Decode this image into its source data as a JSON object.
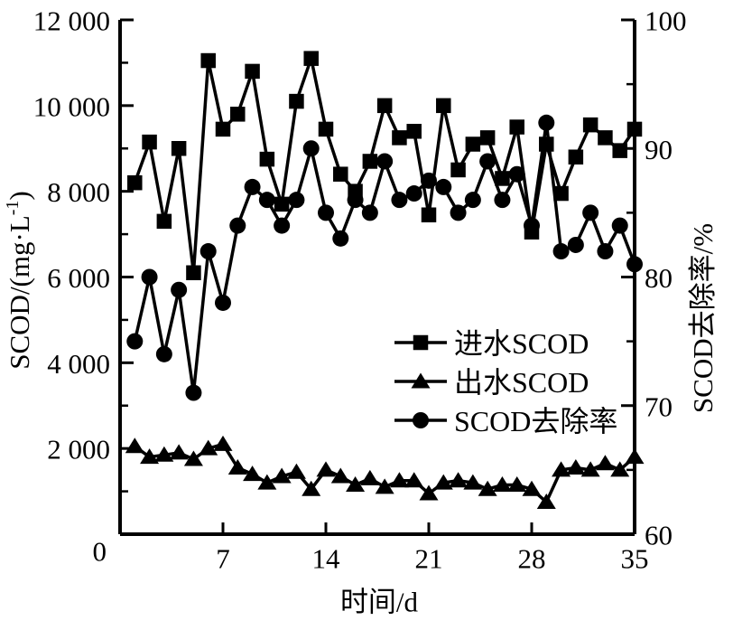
{
  "chart_data": {
    "type": "line",
    "title": "",
    "xlabel": "时间/d",
    "x": [
      1,
      2,
      3,
      4,
      5,
      6,
      7,
      8,
      9,
      10,
      11,
      12,
      13,
      14,
      15,
      16,
      17,
      18,
      19,
      20,
      21,
      22,
      23,
      24,
      25,
      26,
      27,
      28,
      29,
      30,
      31,
      32,
      33,
      34,
      35
    ],
    "xlim": [
      0,
      35
    ],
    "x_major_ticks": [
      7,
      14,
      21,
      28,
      35
    ],
    "x_major_tick_labels": [
      "7",
      "14",
      "21",
      "28",
      "35"
    ],
    "grid": false,
    "legend_position": "inside-center-right",
    "line_color": "#000000",
    "y_left": {
      "label_prefix": "SCOD/(mg·L",
      "label_sup": "-1",
      "label_suffix": ")",
      "label_full": "SCOD/(mg·L⁻¹)",
      "lim": [
        0,
        12000
      ],
      "major_ticks": [
        2000,
        4000,
        6000,
        8000,
        10000,
        12000
      ],
      "major_tick_labels": [
        "2 000",
        "4 000",
        "6 000",
        "8 000",
        "10 000",
        "12 000"
      ],
      "minor_ticks": [
        1000,
        3000,
        5000,
        7000,
        9000,
        11000
      ],
      "origin_label": "0"
    },
    "y_right": {
      "label": "SCOD去除率/%",
      "lim": [
        60,
        100
      ],
      "major_ticks": [
        60,
        70,
        80,
        90,
        100
      ],
      "major_tick_labels": [
        "60",
        "70",
        "80",
        "90",
        "100"
      ],
      "minor_ticks": [
        65,
        75,
        85,
        95
      ]
    },
    "series": [
      {
        "name": "进水SCOD",
        "marker": "square",
        "axis": "left",
        "values": [
          8200,
          9150,
          7300,
          9000,
          6100,
          11050,
          9450,
          9800,
          10800,
          8750,
          7700,
          10100,
          11100,
          9450,
          8400,
          8000,
          8700,
          10000,
          9250,
          9400,
          7450,
          10000,
          8500,
          9100,
          9250,
          8300,
          9500,
          7050,
          9100,
          7950,
          8800,
          9550,
          9250,
          8950,
          9450
        ]
      },
      {
        "name": "出水SCOD",
        "marker": "triangle",
        "axis": "left",
        "values": [
          2050,
          1800,
          1850,
          1900,
          1750,
          2000,
          2100,
          1550,
          1400,
          1200,
          1350,
          1450,
          1050,
          1500,
          1350,
          1150,
          1300,
          1100,
          1250,
          1250,
          950,
          1200,
          1250,
          1200,
          1050,
          1150,
          1150,
          1050,
          750,
          1500,
          1550,
          1500,
          1650,
          1500,
          1800
        ]
      },
      {
        "name": "SCOD去除率",
        "marker": "circle",
        "axis": "right",
        "values": [
          75,
          80,
          74,
          79,
          71,
          82,
          78,
          84,
          87,
          86,
          84,
          86,
          90,
          85,
          83,
          86,
          85,
          89,
          86,
          86.5,
          87.5,
          87,
          85,
          86,
          89,
          86,
          88,
          84,
          92,
          82,
          82.5,
          85,
          82,
          84,
          81
        ]
      }
    ]
  }
}
